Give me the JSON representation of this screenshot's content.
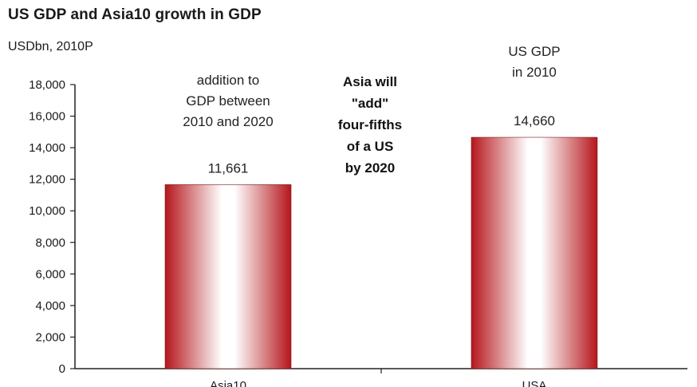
{
  "title": "US GDP and Asia10 growth in GDP",
  "subtitle": "USDbn, 2010P",
  "colors": {
    "bar_edge": "#b5161c",
    "bar_center": "#ffffff",
    "axis": "#222222"
  },
  "chart_data": {
    "type": "bar",
    "title": "US GDP and Asia10 growth in GDP",
    "ylabel": "USDbn, 2010P",
    "xlabel": "",
    "categories": [
      "Asia10",
      "USA"
    ],
    "values": [
      11661,
      14660
    ],
    "value_labels": [
      "11,661",
      "14,660"
    ],
    "ylim": [
      0,
      18000
    ],
    "yticks": [
      0,
      2000,
      4000,
      6000,
      8000,
      10000,
      12000,
      14000,
      16000,
      18000
    ],
    "ytick_labels": [
      "0",
      "2,000",
      "4,000",
      "6,000",
      "8,000",
      "10,000",
      "12,000",
      "14,000",
      "16,000",
      "18,000"
    ],
    "grid": false,
    "legend": "none",
    "annotations": {
      "asia10": [
        "addition to",
        "GDP between",
        "2010 and 2020"
      ],
      "center": [
        "Asia will",
        "\"add\"",
        "four-fifths",
        "of a US",
        "by 2020"
      ],
      "usa": [
        "US GDP",
        "in 2010"
      ]
    }
  }
}
